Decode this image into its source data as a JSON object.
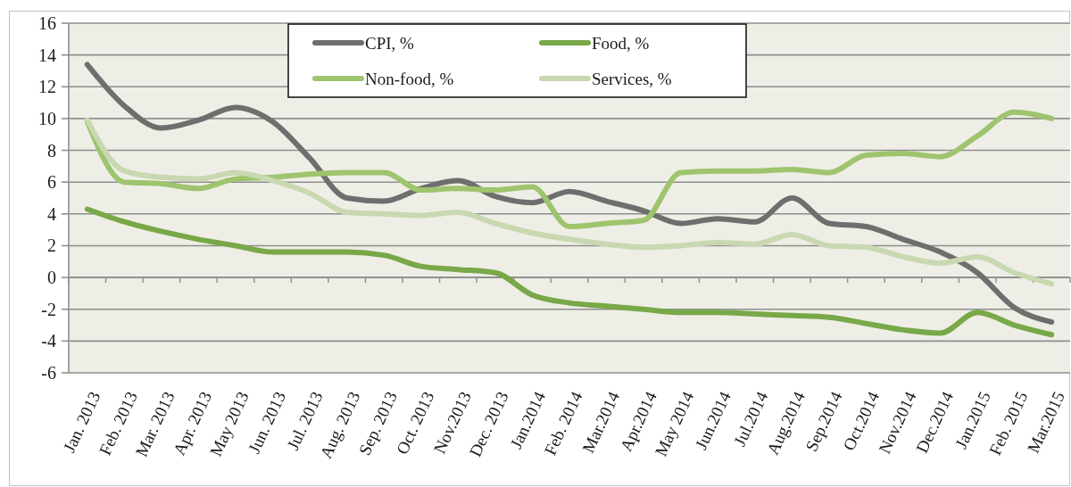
{
  "chart_data": {
    "type": "line",
    "categories": [
      "Jan. 2013",
      "Feb. 2013",
      "Mar. 2013",
      "Apr. 2013",
      "May 2013",
      "Jun. 2013",
      "Jul. 2013",
      "Aug. 2013",
      "Sep. 2013",
      "Oct. 2013",
      "Nov.2013",
      "Dec. 2013",
      "Jan.2014",
      "Feb. 2014",
      "Mar.2014",
      "Apr.2014",
      "May 2014",
      "Jun.2014",
      "Jul.2014",
      "Aug.2014",
      "Sep.2014",
      "Oct.2014",
      "Nov.2014",
      "Dec.2014",
      "Jan.2015",
      "Feb. 2015",
      "Mar.2015"
    ],
    "series": [
      {
        "name": "CPI, %",
        "color": "#6e6e6e",
        "values": [
          13.4,
          10.8,
          9.4,
          9.9,
          10.7,
          9.8,
          7.5,
          5.0,
          4.8,
          5.6,
          6.1,
          5.1,
          4.7,
          5.4,
          4.8,
          4.2,
          3.4,
          3.7,
          3.5,
          5.0,
          3.4,
          3.2,
          2.4,
          1.6,
          0.3,
          -1.9,
          -2.8
        ]
      },
      {
        "name": "Food, %",
        "color": "#78a848",
        "values": [
          4.3,
          3.5,
          2.9,
          2.4,
          2.0,
          1.6,
          1.6,
          1.6,
          1.4,
          0.7,
          0.5,
          0.3,
          -1.1,
          -1.6,
          -1.8,
          -2.0,
          -2.2,
          -2.2,
          -2.3,
          -2.4,
          -2.5,
          -2.9,
          -3.3,
          -3.5,
          -2.2,
          -3.0,
          -3.6
        ]
      },
      {
        "name": "Non-food, %",
        "color": "#9ec46e",
        "values": [
          9.8,
          6.0,
          5.9,
          5.6,
          6.2,
          6.3,
          6.5,
          6.6,
          6.6,
          5.5,
          5.6,
          5.5,
          5.7,
          3.2,
          3.4,
          3.6,
          6.6,
          6.7,
          6.7,
          6.8,
          6.6,
          7.7,
          7.8,
          7.6,
          8.9,
          10.4,
          10.0
        ]
      },
      {
        "name": "Services, %",
        "color": "#c8d8b0",
        "values": [
          9.9,
          6.7,
          6.3,
          6.2,
          6.6,
          6.1,
          5.3,
          4.1,
          4.0,
          3.9,
          4.1,
          3.4,
          2.8,
          2.4,
          2.1,
          1.9,
          2.0,
          2.2,
          2.1,
          2.7,
          2.0,
          1.9,
          1.3,
          0.9,
          1.3,
          0.3,
          -0.4
        ]
      }
    ],
    "ylim": [
      -6,
      16
    ],
    "yticks": [
      -6,
      -4,
      -2,
      0,
      2,
      4,
      6,
      8,
      10,
      12,
      14,
      16
    ],
    "grid": "y",
    "legend": "top"
  }
}
